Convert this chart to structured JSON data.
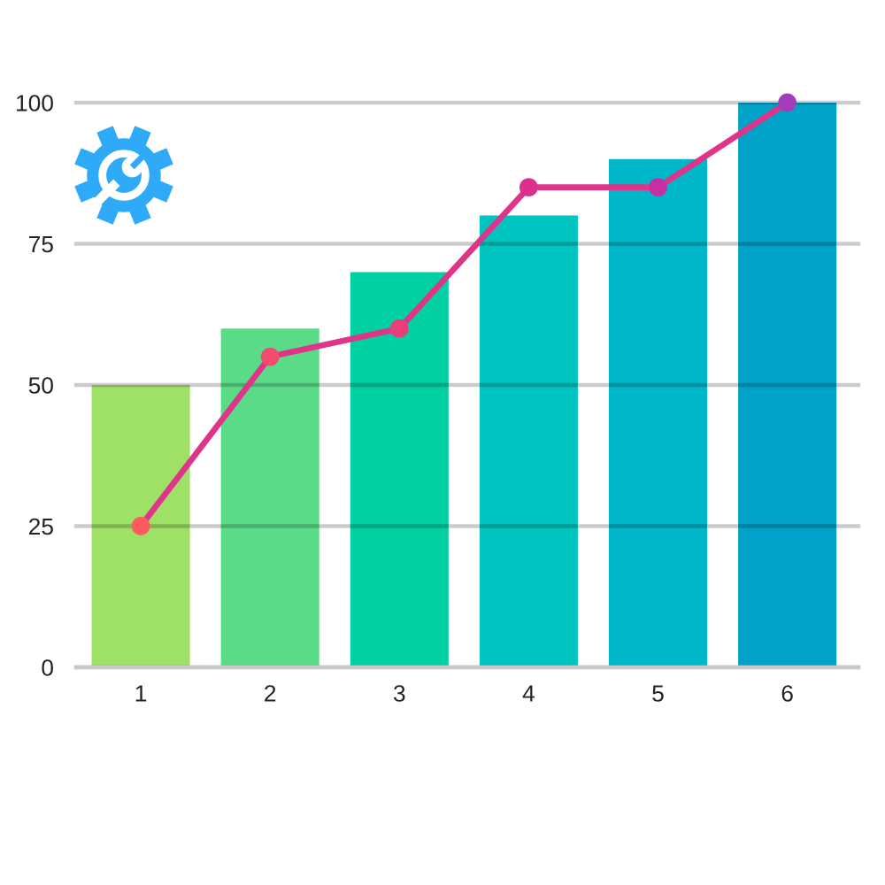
{
  "chart_data": {
    "type": "bar",
    "categories": [
      "1",
      "2",
      "3",
      "4",
      "5",
      "6"
    ],
    "series": [
      {
        "colors": [
          "#9fe066",
          "#5adb87",
          "#00d0a2",
          "#00c4bf",
          "#00b6c9",
          "#00a2c7"
        ],
        "values": [
          50,
          60,
          70,
          80,
          90,
          100
        ]
      },
      {
        "type": "line",
        "color": "#e0338a",
        "colors": [
          "#ff5a5f",
          "#f24d6c",
          "#e83f7b",
          "#d9318d",
          "#c52fa2",
          "#a33cb8"
        ],
        "values": [
          25,
          55,
          60,
          85,
          85,
          100
        ]
      }
    ],
    "ylim": [
      0,
      100
    ],
    "yticks": [
      0,
      25,
      50,
      75,
      100
    ],
    "grid": "y",
    "marker": "circle",
    "line_style": "solid"
  }
}
